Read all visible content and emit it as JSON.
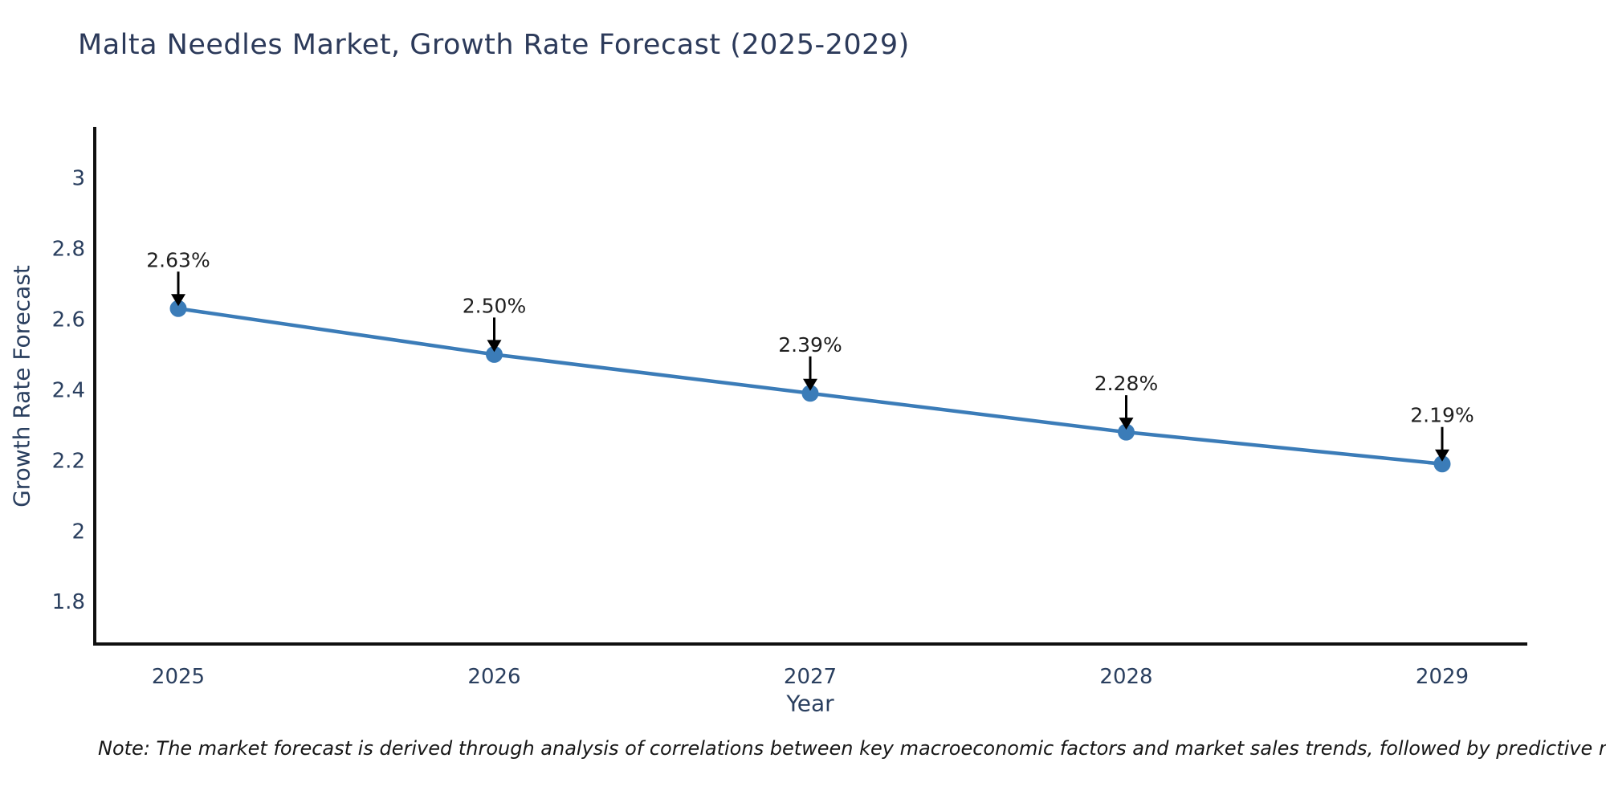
{
  "title": "Malta Needles Market, Growth Rate Forecast (2025-2029)",
  "note": "Note: The market forecast is derived through analysis of correlations between key macroeconomic factors and market sales trends, followed by predictive modeling to project future sales",
  "chart_data": {
    "type": "line",
    "title": "Malta Needles Market, Growth Rate Forecast (2025-2029)",
    "xlabel": "Year",
    "ylabel": "Growth Rate Forecast",
    "categories": [
      "2025",
      "2026",
      "2027",
      "2028",
      "2029"
    ],
    "values": [
      2.63,
      2.5,
      2.39,
      2.28,
      2.19
    ],
    "point_labels": [
      "2.63%",
      "2.50%",
      "2.39%",
      "2.28%",
      "2.19%"
    ],
    "ytick_values": [
      3,
      2.8,
      2.6,
      2.4,
      2.2,
      2,
      1.8
    ],
    "ytick_labels": [
      "3",
      "2.8",
      "2.6",
      "2.4",
      "2.2",
      "2",
      "1.8"
    ],
    "ylim": [
      1.68,
      3.14
    ],
    "grid": false,
    "legend": "none",
    "annotations": "value-label-with-down-arrow-to-each-point",
    "colors": {
      "line": "#3b7cb8",
      "marker": "#3b7cb8",
      "axis": "#101010",
      "tick_text": "#2a3f5f",
      "title_text": "#2c3a5a",
      "annotation_text": "#1f1f1f",
      "arrow": "#000000",
      "background": "#ffffff"
    }
  }
}
